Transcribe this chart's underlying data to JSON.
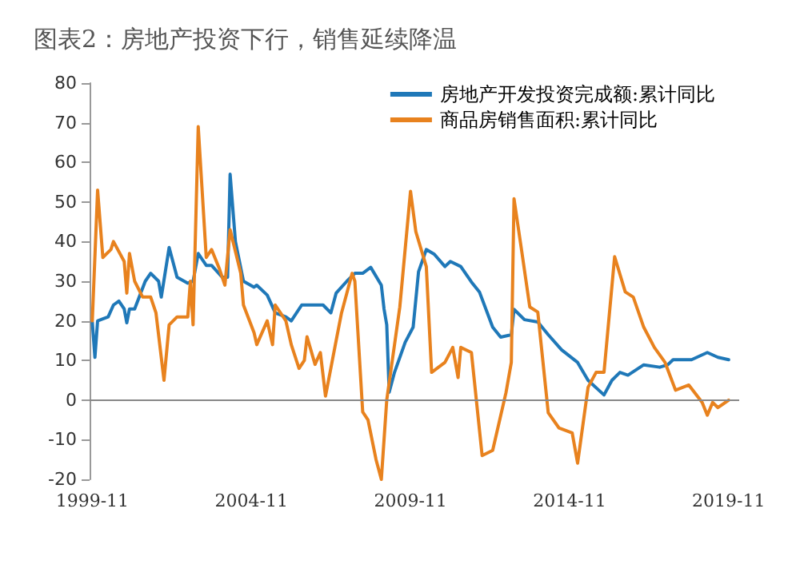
{
  "chart_data": {
    "type": "line",
    "title": "图表2：房地产投资下行，销售延续降温",
    "xlim": [
      "1999-10",
      "2020-03"
    ],
    "xticks": [
      "1999-11",
      "2004-11",
      "2009-11",
      "2014-11",
      "2019-11"
    ],
    "ylim": [
      -20,
      80
    ],
    "yticks": [
      -20,
      -10,
      0,
      10,
      20,
      30,
      40,
      50,
      60,
      70,
      80
    ],
    "grid": false,
    "ref_lines": [
      {
        "axis": "y",
        "value": 0,
        "color": "#888888"
      }
    ],
    "legend": "top right",
    "marker": "none",
    "line_style": "solid",
    "series": [
      {
        "name": "房地产开发投资完成额:累计同比",
        "color": "#1f78b8",
        "x": [
          "1999-11",
          "1999-12",
          "2000-01",
          "2000-05",
          "2000-07",
          "2000-09",
          "2000-11",
          "2000-12",
          "2001-01",
          "2001-03",
          "2001-07",
          "2001-09",
          "2001-12",
          "2002-01",
          "2002-04",
          "2002-07",
          "2002-11",
          "2003-01",
          "2003-03",
          "2003-06",
          "2003-08",
          "2003-12",
          "2004-02",
          "2004-03",
          "2004-05",
          "2004-08",
          "2004-12",
          "2005-01",
          "2005-05",
          "2005-08",
          "2005-12",
          "2006-02",
          "2006-06",
          "2006-11",
          "2007-02",
          "2007-05",
          "2007-07",
          "2007-11",
          "2008-02",
          "2008-05",
          "2008-08",
          "2008-12",
          "2009-01",
          "2009-02",
          "2009-03",
          "2009-05",
          "2009-09",
          "2009-12",
          "2010-02",
          "2010-05",
          "2010-08",
          "2010-12",
          "2011-02",
          "2011-06",
          "2011-10",
          "2012-01",
          "2012-06",
          "2012-09",
          "2013-01",
          "2013-02",
          "2013-06",
          "2013-11",
          "2014-03",
          "2014-08",
          "2015-02",
          "2015-06",
          "2015-12",
          "2016-03",
          "2016-06",
          "2016-09",
          "2017-03",
          "2017-09",
          "2017-12",
          "2018-02",
          "2018-09",
          "2019-03",
          "2019-07",
          "2019-11"
        ],
        "values": [
          19.7,
          10.8,
          20,
          21,
          24,
          25,
          23,
          19.5,
          23,
          23,
          30,
          32,
          30,
          26,
          38.5,
          31,
          29.5,
          30,
          37,
          34,
          34,
          31,
          31,
          57,
          40,
          30,
          28.5,
          29,
          26.5,
          22,
          21,
          20,
          24,
          24,
          24,
          22,
          27,
          30,
          32,
          32,
          33.5,
          29,
          23,
          19,
          2,
          7,
          14.6,
          18.4,
          32.4,
          38,
          36.8,
          33.7,
          35,
          33.7,
          29.8,
          27.3,
          18.4,
          15.9,
          16.5,
          22.9,
          20.3,
          19.7,
          16.5,
          12.7,
          9.5,
          5,
          1.3,
          5,
          7,
          6.3,
          8.9,
          8.3,
          8.9,
          10.2,
          10.2,
          12,
          10.8,
          10.2
        ]
      },
      {
        "name": "商品房销售面积:累计同比",
        "color": "#e8821e",
        "x": [
          "1999-11",
          "2000-01",
          "2000-03",
          "2000-06",
          "2000-07",
          "2000-11",
          "2000-12",
          "2001-01",
          "2001-03",
          "2001-06",
          "2001-09",
          "2001-11",
          "2002-02",
          "2002-04",
          "2002-07",
          "2002-11",
          "2002-12",
          "2003-01",
          "2003-03",
          "2003-06",
          "2003-08",
          "2003-11",
          "2004-01",
          "2004-03",
          "2004-07",
          "2004-08",
          "2004-12",
          "2005-01",
          "2005-05",
          "2005-07",
          "2005-08",
          "2005-12",
          "2006-02",
          "2006-05",
          "2006-07",
          "2006-08",
          "2006-11",
          "2007-01",
          "2007-03",
          "2007-07",
          "2007-09",
          "2008-01",
          "2008-02",
          "2008-05",
          "2008-07",
          "2008-10",
          "2008-12",
          "2009-02",
          "2009-07",
          "2009-11",
          "2010-01",
          "2010-05",
          "2010-07",
          "2010-12",
          "2011-03",
          "2011-05",
          "2011-06",
          "2011-10",
          "2012-02",
          "2012-06",
          "2012-11",
          "2013-01",
          "2013-02",
          "2013-05",
          "2013-08",
          "2013-11",
          "2014-03",
          "2014-07",
          "2014-12",
          "2015-02",
          "2015-06",
          "2015-09",
          "2015-12",
          "2016-04",
          "2016-08",
          "2016-11",
          "2017-03",
          "2017-07",
          "2017-11",
          "2018-03",
          "2018-08",
          "2019-01",
          "2019-03",
          "2019-05",
          "2019-07",
          "2019-11"
        ],
        "values": [
          20,
          53,
          36,
          38,
          40,
          35,
          27,
          37,
          30,
          26,
          26,
          22,
          5,
          19,
          21,
          21,
          30,
          19,
          69,
          36,
          38,
          33,
          29,
          43,
          32,
          24,
          17,
          14,
          20,
          14,
          24,
          20,
          14,
          8,
          10,
          16,
          9,
          12,
          1,
          15,
          22,
          32,
          30,
          -3,
          -5,
          -15,
          -20,
          0,
          23.5,
          52.7,
          42.5,
          33.7,
          7,
          9.5,
          13.3,
          5.7,
          13.3,
          12,
          -14,
          -12.7,
          1.9,
          9.5,
          50.8,
          37.5,
          23.5,
          22.2,
          -3.2,
          -7,
          -8.3,
          -15.9,
          3.2,
          7,
          7,
          36.2,
          27.3,
          26,
          18.4,
          13.3,
          9.5,
          2.5,
          3.8,
          -0.6,
          -3.8,
          -0.6,
          -1.9,
          0
        ]
      }
    ]
  }
}
